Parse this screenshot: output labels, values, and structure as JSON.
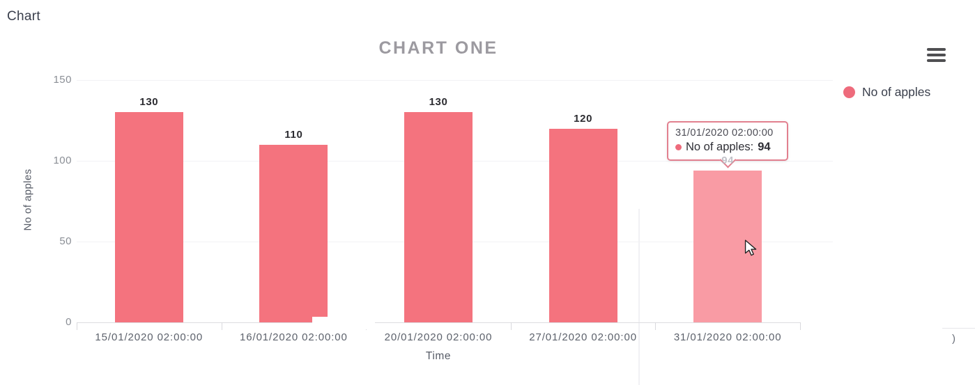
{
  "page": {
    "heading": "Chart"
  },
  "chart": {
    "title": "CHART ONE",
    "menu_icon": "hamburger-menu",
    "xlabel": "Time",
    "ylabel": "No of apples",
    "legend": {
      "label": "No of apples",
      "color": "#ee6b7c"
    }
  },
  "chart_data": {
    "type": "bar",
    "title": "CHART ONE",
    "xlabel": "Time",
    "ylabel": "No of apples",
    "categories": [
      "15/01/2020 02:00:00",
      "16/01/2020 02:00:00",
      "20/01/2020 02:00:00",
      "27/01/2020 02:00:00",
      "31/01/2020 02:00:00"
    ],
    "series": [
      {
        "name": "No of apples",
        "values": [
          130,
          110,
          130,
          120,
          94
        ]
      }
    ],
    "data_labels": [
      "130",
      "110",
      "130",
      "120",
      "94"
    ],
    "ylim": [
      0,
      150
    ],
    "yticks": [
      0,
      50,
      100,
      150
    ],
    "grid": true,
    "legend_position": "right",
    "bar_color": "#f4737e",
    "hover_bar_color": "#f99ba4",
    "hovered_index": 4
  },
  "tooltip": {
    "date": "31/01/2020 02:00:00",
    "series_label": "No of apples:",
    "value": "94",
    "dot_color": "#ee6b7c"
  },
  "artifacts": {
    "fragment_text": ")"
  }
}
